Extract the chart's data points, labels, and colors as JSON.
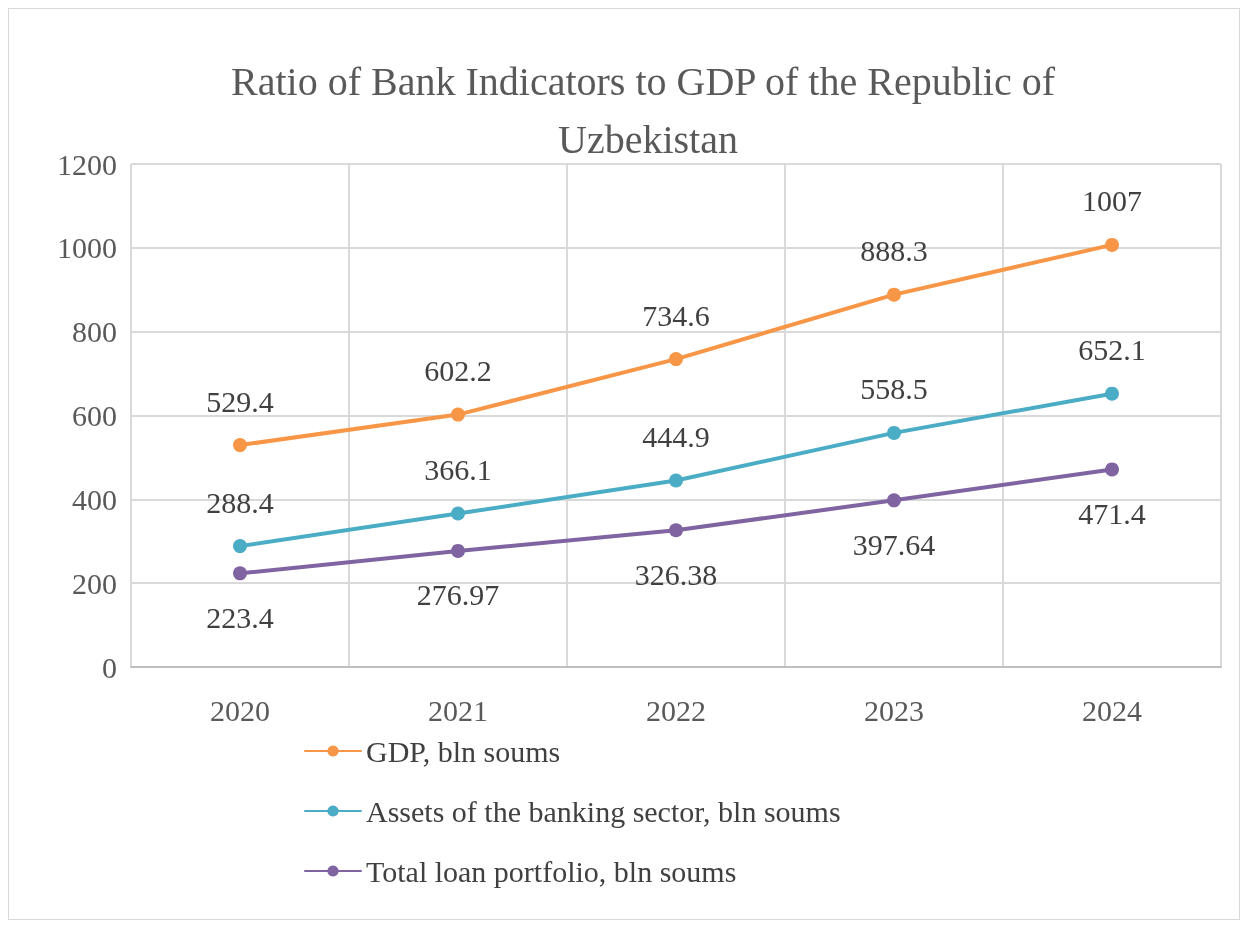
{
  "chart_data": {
    "type": "line",
    "title": "Ratio of Bank Indicators to GDP of the Republic of Uzbekistan",
    "categories": [
      "2020",
      "2021",
      "2022",
      "2023",
      "2024"
    ],
    "series": [
      {
        "name": "GDP, bln soums",
        "color": "#f79646",
        "values": [
          529.4,
          602.2,
          734.6,
          888.3,
          1007
        ]
      },
      {
        "name": "Assets of the banking sector, bln soums",
        "color": "#4bacc6",
        "values": [
          288.4,
          366.1,
          444.9,
          558.5,
          652.1
        ]
      },
      {
        "name": "Total loan portfolio, bln soums",
        "color": "#8064a2",
        "values": [
          223.4,
          276.97,
          326.38,
          397.64,
          471.4
        ]
      }
    ],
    "ylim": [
      0,
      1200
    ],
    "yticks": [
      0,
      200,
      400,
      600,
      800,
      1000,
      1200
    ],
    "grid": true,
    "legend": "bottom",
    "marker": "circle",
    "line_style": "solid",
    "data_labels": true
  }
}
